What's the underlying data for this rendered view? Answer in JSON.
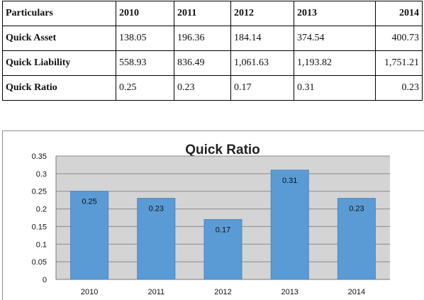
{
  "table": {
    "columns": [
      "Particulars",
      "2010",
      "2011",
      "2012",
      "2013",
      "2014"
    ],
    "rows": [
      {
        "label": "Quick Asset",
        "values": [
          "138.05",
          "196.36",
          "184.14",
          "374.54",
          "400.73"
        ]
      },
      {
        "label": "Quick Liability",
        "values": [
          "558.93",
          "836.49",
          "1,061.63",
          "1,193.82",
          "1,751.21"
        ]
      },
      {
        "label": "Quick Ratio",
        "values": [
          "0.25",
          "0.23",
          "0.17",
          "0.31",
          "0.23"
        ]
      }
    ]
  },
  "chart_data": {
    "type": "bar",
    "title": "Quick Ratio",
    "categories": [
      "2010",
      "2011",
      "2012",
      "2013",
      "2014"
    ],
    "values": [
      0.25,
      0.23,
      0.17,
      0.31,
      0.23
    ],
    "data_labels": [
      "0.25",
      "0.23",
      "0.17",
      "0.31",
      "0.23"
    ],
    "ylim": [
      0,
      0.35
    ],
    "yticks": [
      "0",
      "0.05",
      "0.1",
      "0.15",
      "0.2",
      "0.25",
      "0.3",
      "0.35"
    ],
    "xlabel": "",
    "ylabel": "",
    "grid": true,
    "colors": {
      "bar": "#5b9bd5",
      "bar_border": "#4a86c0",
      "plot_background": "#d4d4d4",
      "gridline": "#8a8a8a"
    }
  }
}
